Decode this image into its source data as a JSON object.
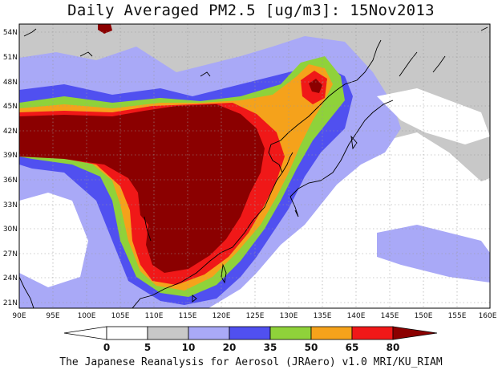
{
  "title": "Daily Averaged PM2.5 [ug/m3]: 15Nov2013",
  "footer": "The Japanese Reanalysis for Aerosol (JRAero) v1.0 MRI/KU_RIAM",
  "map": {
    "lon_range": [
      90,
      160
    ],
    "lat_range": [
      20,
      55
    ],
    "lon_ticks": [
      "90E",
      "95E",
      "100E",
      "105E",
      "110E",
      "115E",
      "120E",
      "125E",
      "130E",
      "135E",
      "140E",
      "145E",
      "150E",
      "155E",
      "160E"
    ],
    "lat_ticks": [
      "54N",
      "51N",
      "48N",
      "45N",
      "42N",
      "39N",
      "36N",
      "33N",
      "30N",
      "27N",
      "24N",
      "21N"
    ],
    "grid": true
  },
  "colorbar": {
    "levels": [
      "0",
      "5",
      "10",
      "20",
      "35",
      "50",
      "65",
      "80"
    ],
    "colors": [
      "#ffffff",
      "#c8c8c8",
      "#a9a9f7",
      "#5050f0",
      "#8fd23a",
      "#f5a21b",
      "#f01818",
      "#8b0000"
    ]
  }
}
